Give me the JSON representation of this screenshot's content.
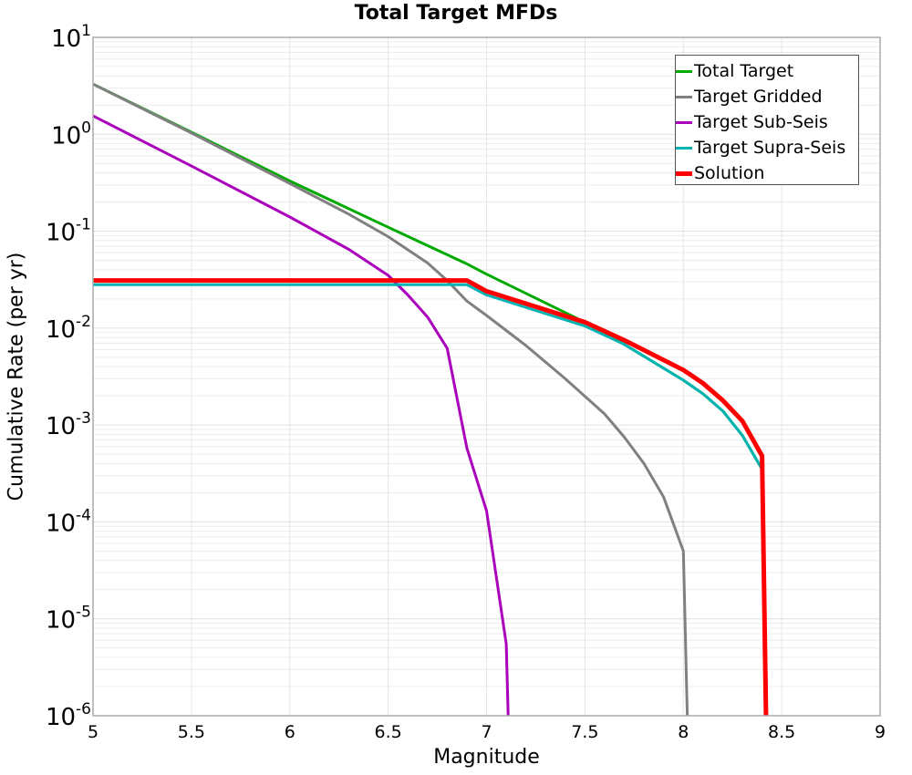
{
  "chart_data": {
    "type": "line",
    "title": "Total Target MFDs",
    "xlabel": "Magnitude",
    "ylabel": "Cumulative Rate (per yr)",
    "xlim": [
      5,
      9
    ],
    "ylim": [
      1e-06,
      10
    ],
    "yscale": "log",
    "grid": true,
    "legend_position": "upper right",
    "x_ticks": [
      "5",
      "5.5",
      "6",
      "6.5",
      "7",
      "7.5",
      "8",
      "8.5",
      "9"
    ],
    "y_ticks": [
      {
        "base": "10",
        "exp": "1",
        "value": 10
      },
      {
        "base": "10",
        "exp": "0",
        "value": 1
      },
      {
        "base": "10",
        "exp": "-1",
        "value": 0.1
      },
      {
        "base": "10",
        "exp": "-2",
        "value": 0.01
      },
      {
        "base": "10",
        "exp": "-3",
        "value": 0.001
      },
      {
        "base": "10",
        "exp": "-4",
        "value": 0.0001
      },
      {
        "base": "10",
        "exp": "-5",
        "value": 1e-05
      },
      {
        "base": "10",
        "exp": "-6",
        "value": 1e-06
      }
    ],
    "series": [
      {
        "name": "Total Target",
        "color": "#00aa00",
        "width": 3,
        "x": [
          5.0,
          5.5,
          6.0,
          6.5,
          6.9,
          7.0,
          7.5,
          7.7,
          8.0,
          8.1,
          8.2,
          8.3,
          8.4
        ],
        "y": [
          3.3,
          1.05,
          0.33,
          0.11,
          0.046,
          0.036,
          0.0115,
          0.0068,
          0.0029,
          0.0021,
          0.0014,
          0.00078,
          0.00035
        ]
      },
      {
        "name": "Target Gridded",
        "color": "#808080",
        "width": 3,
        "x": [
          5.0,
          5.5,
          6.0,
          6.3,
          6.5,
          6.7,
          6.8,
          6.9,
          7.0,
          7.2,
          7.4,
          7.6,
          7.7,
          7.8,
          7.9,
          8.0,
          8.02
        ],
        "y": [
          3.3,
          1.03,
          0.31,
          0.15,
          0.088,
          0.047,
          0.031,
          0.019,
          0.0135,
          0.0066,
          0.003,
          0.0013,
          0.00075,
          0.0004,
          0.00018,
          5e-05,
          1e-06
        ]
      },
      {
        "name": "Target Sub-Seis",
        "color": "#aa00bb",
        "width": 3,
        "x": [
          5.0,
          5.5,
          6.0,
          6.3,
          6.5,
          6.6,
          6.7,
          6.8,
          6.9,
          7.0,
          7.1,
          7.11
        ],
        "y": [
          1.55,
          0.47,
          0.14,
          0.065,
          0.035,
          0.022,
          0.013,
          0.0062,
          0.00058,
          0.00013,
          5.5e-06,
          1e-06
        ]
      },
      {
        "name": "Target Supra-Seis",
        "color": "#00b3b3",
        "width": 3,
        "x": [
          5.0,
          6.9,
          7.0,
          7.5,
          7.7,
          8.0,
          8.1,
          8.2,
          8.3,
          8.4
        ],
        "y": [
          0.028,
          0.028,
          0.022,
          0.0105,
          0.0068,
          0.0029,
          0.0021,
          0.0014,
          0.00078,
          0.00035
        ]
      },
      {
        "name": "Solution",
        "color": "#ff0000",
        "width": 5,
        "x": [
          5.0,
          6.9,
          7.0,
          7.5,
          7.7,
          8.0,
          8.1,
          8.2,
          8.3,
          8.4,
          8.42
        ],
        "y": [
          0.031,
          0.031,
          0.024,
          0.0115,
          0.0075,
          0.0037,
          0.0027,
          0.0018,
          0.0011,
          0.00048,
          1e-06
        ]
      }
    ]
  }
}
